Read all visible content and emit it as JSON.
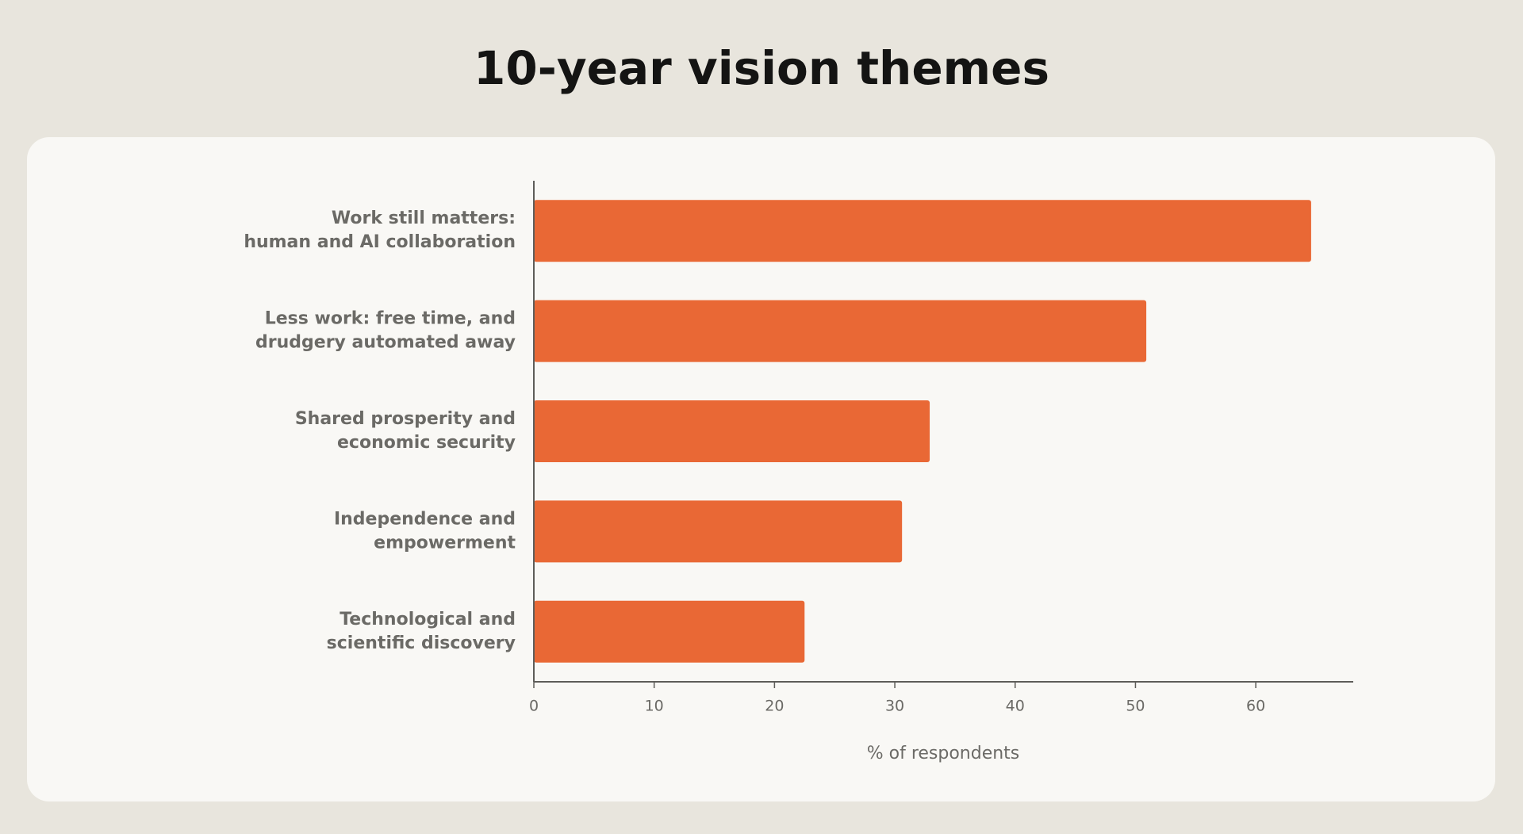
{
  "chart_data": {
    "type": "bar",
    "orientation": "horizontal",
    "title": "10-year vision themes",
    "categories": [
      [
        "Work still matters:",
        "human and AI collaboration"
      ],
      [
        "Less work: free time, and",
        "drudgery automated away"
      ],
      [
        "Shared prosperity and",
        "economic security"
      ],
      [
        "Independence and",
        "empowerment"
      ],
      [
        "Technological and",
        "scientific discovery"
      ]
    ],
    "values": [
      64.6,
      50.9,
      32.9,
      30.6,
      22.5
    ],
    "color": "#e96835",
    "xlabel": "% of respondents",
    "xlim": [
      0,
      68.1
    ],
    "xticks": [
      0,
      10,
      20,
      30,
      40,
      50,
      60
    ],
    "grid": false
  }
}
